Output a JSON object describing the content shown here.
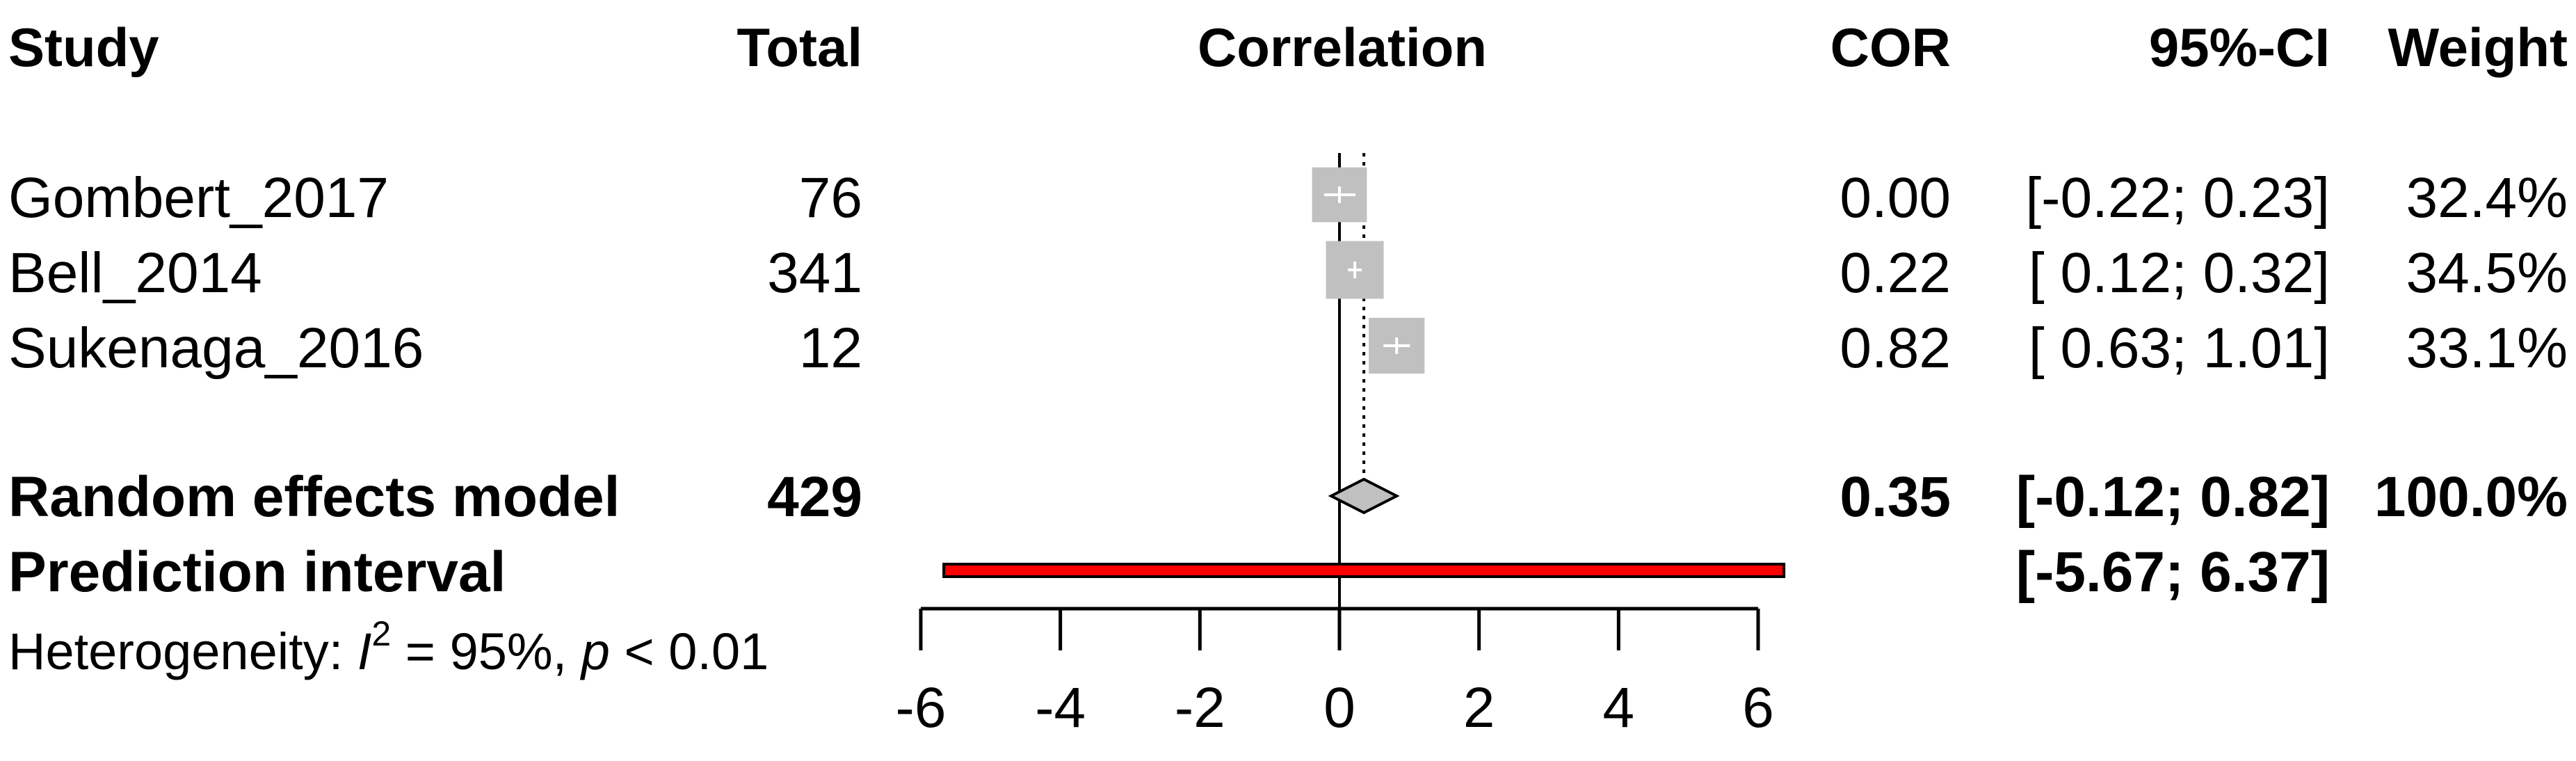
{
  "chart_data": {
    "type": "forest",
    "headers": {
      "study": "Study",
      "total": "Total",
      "effect": "Correlation",
      "estimate": "COR",
      "ci": "95%-CI",
      "weight": "Weight"
    },
    "studies": [
      {
        "name": "Gombert_2017",
        "total": "76",
        "cor": 0.0,
        "lower": -0.22,
        "upper": 0.23,
        "cor_text": "0.00",
        "ci_text": "[-0.22; 0.23]",
        "weight": 32.4,
        "weight_text": "32.4%"
      },
      {
        "name": "Bell_2014",
        "total": "341",
        "cor": 0.22,
        "lower": 0.12,
        "upper": 0.32,
        "cor_text": "0.22",
        "ci_text": "[ 0.12; 0.32]",
        "weight": 34.5,
        "weight_text": "34.5%"
      },
      {
        "name": "Sukenaga_2016",
        "total": "12",
        "cor": 0.82,
        "lower": 0.63,
        "upper": 1.01,
        "cor_text": "0.82",
        "ci_text": "[ 0.63; 1.01]",
        "weight": 33.1,
        "weight_text": "33.1%"
      }
    ],
    "random_effects": {
      "label": "Random effects model",
      "total": "429",
      "cor": 0.35,
      "lower": -0.12,
      "upper": 0.82,
      "cor_text": "0.35",
      "ci_text": "[-0.12; 0.82]",
      "weight_text": "100.0%"
    },
    "prediction_interval": {
      "label": "Prediction interval",
      "lower": -5.67,
      "upper": 6.37,
      "ci_text": "[-5.67; 6.37]",
      "color": "#ff0000"
    },
    "heterogeneity": {
      "prefix": "Heterogeneity: ",
      "i2_symbol": "I",
      "i2_exp": "2",
      "i2_value": " = 95%, ",
      "p_symbol": "p",
      "p_value": " < 0.01"
    },
    "x_axis": {
      "ticks": [
        -6,
        -4,
        -2,
        0,
        2,
        4,
        6
      ],
      "tick_labels": [
        "-6",
        "-4",
        "-2",
        "0",
        "2",
        "4",
        "6"
      ],
      "range": [
        -6,
        6
      ]
    },
    "colors": {
      "square": "#c0c0c0",
      "diamond": "#c0c0c0"
    }
  }
}
